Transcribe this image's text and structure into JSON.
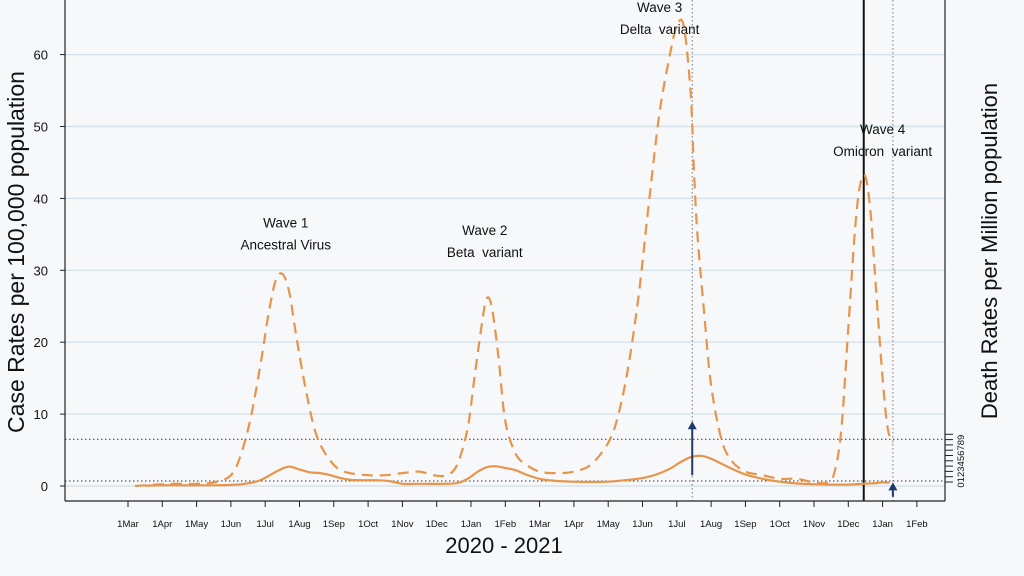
{
  "chart_data": {
    "type": "line",
    "title": "",
    "xlabel": "2020 - 2021",
    "ylabel": "Case Rates per 100,000 population",
    "y2label": "Death Rates per Million population",
    "ylim": [
      0,
      65
    ],
    "yticks": [
      0,
      10,
      20,
      30,
      40,
      50,
      60
    ],
    "y2ticks": [
      0,
      1,
      2,
      3,
      4,
      5,
      6,
      7,
      8,
      9
    ],
    "y2lim": [
      0,
      9
    ],
    "grid": true,
    "x_tick_labels": [
      "1Mar",
      "1Apr",
      "1May",
      "1Jun",
      "1Jul",
      "1Aug",
      "1Sep",
      "1Oct",
      "1Nov",
      "1Dec",
      "1Jan",
      "1Feb",
      "1Mar",
      "1Apr",
      "1May",
      "1Jun",
      "1Jul",
      "1Aug",
      "1Sep",
      "1Oct",
      "1Nov",
      "1Dec",
      "1Jan",
      "1Feb"
    ],
    "x_tick_months": [
      0,
      1,
      2,
      3,
      4,
      5,
      6,
      7,
      8,
      9,
      10,
      11,
      12,
      13,
      14,
      15,
      16,
      17,
      18,
      19,
      20,
      21,
      22,
      23
    ],
    "series": [
      {
        "name": "Case rates (per 100,000)",
        "style": "dashed",
        "color": "#e8944a",
        "x": [
          0.2,
          0.8,
          1.3,
          2.0,
          2.5,
          3.0,
          3.3,
          3.6,
          3.9,
          4.1,
          4.3,
          4.5,
          4.7,
          4.9,
          5.2,
          5.5,
          5.9,
          6.3,
          7.0,
          7.5,
          8.0,
          8.5,
          8.9,
          9.3,
          9.6,
          9.9,
          10.1,
          10.3,
          10.45,
          10.6,
          10.8,
          11.0,
          11.3,
          11.6,
          12.0,
          12.5,
          13.0,
          13.5,
          14.0,
          14.3,
          14.6,
          14.9,
          15.2,
          15.5,
          15.8,
          16.0,
          16.2,
          16.4,
          16.5,
          16.6,
          16.8,
          17.0,
          17.3,
          17.6,
          18.0,
          18.5,
          19.0,
          19.5,
          20.0,
          20.4,
          20.6,
          20.8,
          21.0,
          21.2,
          21.35,
          21.5,
          21.65,
          21.8,
          22.0,
          22.15,
          22.3
        ],
        "y": [
          0,
          0.2,
          0.3,
          0.3,
          0.5,
          1.5,
          4.5,
          10,
          18,
          24,
          28.5,
          29.5,
          27,
          21,
          13,
          7,
          3.5,
          2,
          1.5,
          1.5,
          1.8,
          2,
          1.5,
          1.5,
          3,
          8,
          15,
          22,
          26,
          25,
          18,
          9,
          4.5,
          3,
          2,
          1.8,
          2,
          3,
          6,
          10,
          17,
          27,
          40,
          52,
          60,
          64,
          64,
          55,
          44,
          35,
          24,
          14,
          6.5,
          3.5,
          2,
          1.5,
          1,
          1,
          0.5,
          0.5,
          2,
          8,
          22,
          36,
          42,
          43,
          38,
          28,
          15,
          8,
          6
        ]
      },
      {
        "name": "Death rates (per million)",
        "style": "solid",
        "color": "#e8944a",
        "x": [
          0.5,
          1.0,
          1.5,
          2.0,
          2.5,
          3.0,
          3.4,
          3.8,
          4.1,
          4.4,
          4.7,
          5.0,
          5.3,
          5.6,
          5.9,
          6.2,
          6.5,
          6.8,
          7.2,
          7.6,
          8.0,
          8.4,
          8.8,
          9.2,
          9.6,
          9.9,
          10.2,
          10.45,
          10.7,
          11.0,
          11.3,
          11.6,
          12.0,
          12.5,
          13.0,
          13.5,
          14.0,
          14.5,
          15.0,
          15.4,
          15.8,
          16.1,
          16.4,
          16.7,
          17.0,
          17.3,
          17.6,
          18.0,
          18.5,
          19.0,
          19.5,
          20.0,
          20.5,
          21.0,
          21.4,
          21.8,
          22.0,
          22.2
        ],
        "y": [
          0.05,
          0.1,
          0.1,
          0.1,
          0.1,
          0.15,
          0.3,
          0.7,
          1.4,
          2.2,
          2.7,
          2.3,
          1.9,
          1.8,
          1.5,
          1.1,
          0.85,
          0.8,
          0.8,
          0.7,
          0.3,
          0.3,
          0.3,
          0.3,
          0.4,
          1.0,
          2.0,
          2.6,
          2.75,
          2.5,
          2.2,
          1.6,
          1.0,
          0.7,
          0.6,
          0.55,
          0.6,
          0.8,
          1.1,
          1.6,
          2.4,
          3.3,
          4.0,
          4.2,
          3.8,
          3.1,
          2.4,
          1.6,
          1.0,
          0.6,
          0.35,
          0.25,
          0.2,
          0.2,
          0.3,
          0.4,
          0.5,
          0.45
        ]
      }
    ],
    "reference_lines": {
      "horizontal": [
        {
          "axis": "y",
          "value": 6.5,
          "style": "dotted"
        },
        {
          "axis": "y",
          "value": 0.7,
          "style": "dotted"
        }
      ],
      "vertical": [
        {
          "x": 16.45,
          "style": "dotted"
        },
        {
          "x": 21.45,
          "style": "solid"
        },
        {
          "x": 22.3,
          "style": "dotted"
        }
      ]
    },
    "arrows": [
      {
        "x": 16.45,
        "y_from": 1.5,
        "y_to": 9
      },
      {
        "x": 22.3,
        "y_from": -1.5,
        "y_to": 0.5
      }
    ],
    "annotations": [
      {
        "lines": [
          "Wave 1",
          "Ancestral Virus"
        ],
        "x": 4.6,
        "y_top": 36.5
      },
      {
        "lines": [
          "Wave 2",
          "Beta  variant"
        ],
        "x": 10.4,
        "y_top": 35.5
      },
      {
        "lines": [
          "Wave 3",
          "Delta  variant"
        ],
        "x": 15.5,
        "y_top": 66.5
      },
      {
        "lines": [
          "Wave 4",
          "Omicron  variant"
        ],
        "x": 22.0,
        "y_top": 49.5
      }
    ]
  }
}
